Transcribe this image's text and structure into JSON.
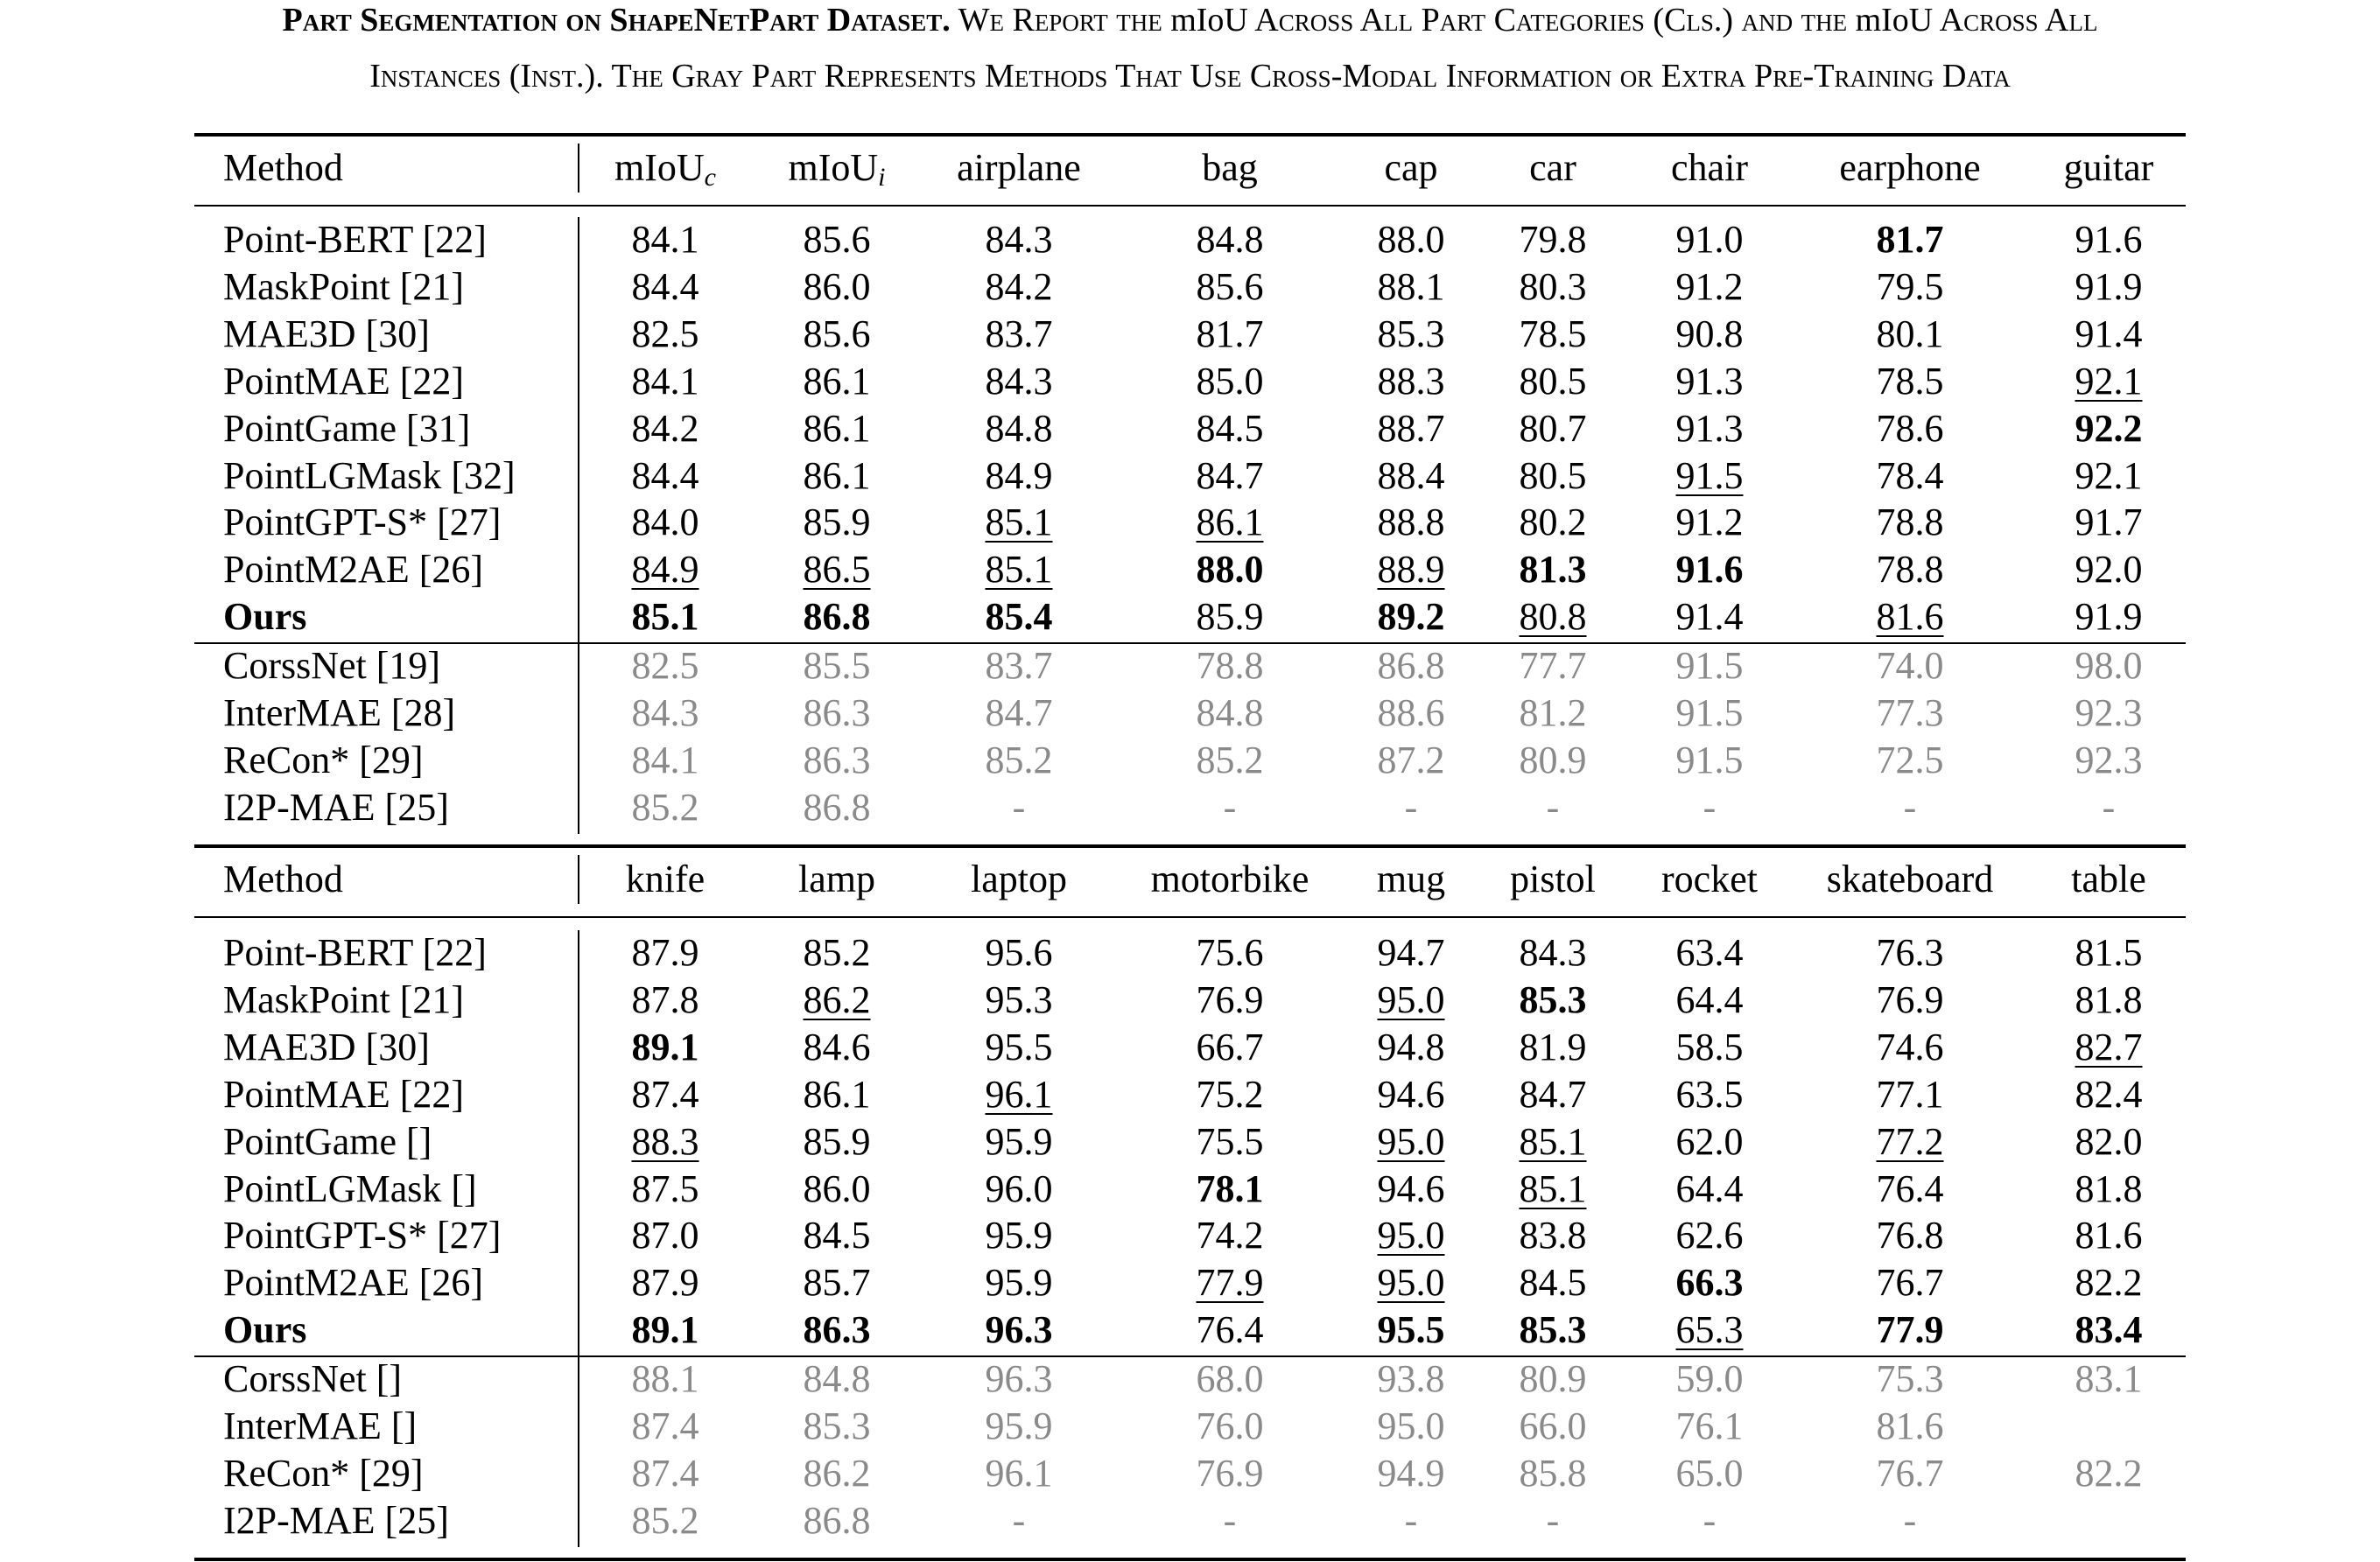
{
  "caption": {
    "title": "Part Segmentation on ShapeNetPart Dataset.",
    "seg_a": "We Report the ",
    "miou_a": "mIoU",
    "seg_b": " Across All Part Categories (Cls.) and the ",
    "miou_b": "mIoU",
    "seg_c": " Across All",
    "line2": "Instances (Inst.). The Gray Part Represents Methods That Use Cross-Modal Information or Extra Pre-Training Data"
  },
  "table1": {
    "headers": {
      "method": "Method",
      "miou_c_base": "mIoU",
      "miou_c_sub": "c",
      "miou_i_base": "mIoU",
      "miou_i_sub": "i",
      "cols": [
        "airplane",
        "bag",
        "cap",
        "car",
        "chair",
        "earphone",
        "guitar"
      ]
    },
    "rows": [
      {
        "method": "Point-BERT [22]",
        "values": [
          "84.1",
          "85.6",
          "84.3",
          "84.8",
          "88.0",
          "79.8",
          "91.0",
          "81.7",
          "91.6"
        ]
      },
      {
        "method": "MaskPoint [21]",
        "values": [
          "84.4",
          "86.0",
          "84.2",
          "85.6",
          "88.1",
          "80.3",
          "91.2",
          "79.5",
          "91.9"
        ]
      },
      {
        "method": "MAE3D [30]",
        "values": [
          "82.5",
          "85.6",
          "83.7",
          "81.7",
          "85.3",
          "78.5",
          "90.8",
          "80.1",
          "91.4"
        ]
      },
      {
        "method": "PointMAE [22]",
        "values": [
          "84.1",
          "86.1",
          "84.3",
          "85.0",
          "88.3",
          "80.5",
          "91.3",
          "78.5",
          "92.1"
        ]
      },
      {
        "method": "PointGame [31]",
        "values": [
          "84.2",
          "86.1",
          "84.8",
          "84.5",
          "88.7",
          "80.7",
          "91.3",
          "78.6",
          "92.2"
        ]
      },
      {
        "method": "PointLGMask [32]",
        "values": [
          "84.4",
          "86.1",
          "84.9",
          "84.7",
          "88.4",
          "80.5",
          "91.5",
          "78.4",
          "92.1"
        ]
      },
      {
        "method": "PointGPT-S* [27]",
        "values": [
          "84.0",
          "85.9",
          "85.1",
          "86.1",
          "88.8",
          "80.2",
          "91.2",
          "78.8",
          "91.7"
        ]
      },
      {
        "method": "PointM2AE [26]",
        "values": [
          "84.9",
          "86.5",
          "85.1",
          "88.0",
          "88.9",
          "81.3",
          "91.6",
          "78.8",
          "92.0"
        ]
      },
      {
        "method": "Ours",
        "values": [
          "85.1",
          "86.8",
          "85.4",
          "85.9",
          "89.2",
          "80.8",
          "91.4",
          "81.6",
          "91.9"
        ]
      }
    ],
    "gray_rows": [
      {
        "method": "CorssNet [19]",
        "values": [
          "82.5",
          "85.5",
          "83.7",
          "78.8",
          "86.8",
          "77.7",
          "91.5",
          "74.0",
          "98.0"
        ]
      },
      {
        "method": "InterMAE [28]",
        "values": [
          "84.3",
          "86.3",
          "84.7",
          "84.8",
          "88.6",
          "81.2",
          "91.5",
          "77.3",
          "92.3"
        ]
      },
      {
        "method": "ReCon* [29]",
        "values": [
          "84.1",
          "86.3",
          "85.2",
          "85.2",
          "87.2",
          "80.9",
          "91.5",
          "72.5",
          "92.3"
        ]
      },
      {
        "method": "I2P-MAE [25]",
        "values": [
          "85.2",
          "86.8",
          "-",
          "-",
          "-",
          "-",
          "-",
          "-",
          "-"
        ]
      }
    ]
  },
  "table2": {
    "headers": {
      "method": "Method",
      "cols": [
        "knife",
        "lamp",
        "laptop",
        "motorbike",
        "mug",
        "pistol",
        "rocket",
        "skateboard",
        "table"
      ]
    },
    "rows": [
      {
        "method": "Point-BERT [22]",
        "values": [
          "87.9",
          "85.2",
          "95.6",
          "75.6",
          "94.7",
          "84.3",
          "63.4",
          "76.3",
          "81.5"
        ]
      },
      {
        "method": "MaskPoint [21]",
        "values": [
          "87.8",
          "86.2",
          "95.3",
          "76.9",
          "95.0",
          "85.3",
          "64.4",
          "76.9",
          "81.8"
        ]
      },
      {
        "method": "MAE3D [30]",
        "values": [
          "89.1",
          "84.6",
          "95.5",
          "66.7",
          "94.8",
          "81.9",
          "58.5",
          "74.6",
          "82.7"
        ]
      },
      {
        "method": "PointMAE [22]",
        "values": [
          "87.4",
          "86.1",
          "96.1",
          "75.2",
          "94.6",
          "84.7",
          "63.5",
          "77.1",
          "82.4"
        ]
      },
      {
        "method": "PointGame []",
        "values": [
          "88.3",
          "85.9",
          "95.9",
          "75.5",
          "95.0",
          "85.1",
          "62.0",
          "77.2",
          "82.0"
        ]
      },
      {
        "method": "PointLGMask []",
        "values": [
          "87.5",
          "86.0",
          "96.0",
          "78.1",
          "94.6",
          "85.1",
          "64.4",
          "76.4",
          "81.8"
        ]
      },
      {
        "method": "PointGPT-S* [27]",
        "values": [
          "87.0",
          "84.5",
          "95.9",
          "74.2",
          "95.0",
          "83.8",
          "62.6",
          "76.8",
          "81.6"
        ]
      },
      {
        "method": "PointM2AE [26]",
        "values": [
          "87.9",
          "85.7",
          "95.9",
          "77.9",
          "95.0",
          "84.5",
          "66.3",
          "76.7",
          "82.2"
        ]
      },
      {
        "method": "Ours",
        "values": [
          "89.1",
          "86.3",
          "96.3",
          "76.4",
          "95.5",
          "85.3",
          "65.3",
          "77.9",
          "83.4"
        ]
      }
    ],
    "gray_rows": [
      {
        "method": "CorssNet []",
        "values": [
          "88.1",
          "84.8",
          "96.3",
          "68.0",
          "93.8",
          "80.9",
          "59.0",
          "75.3",
          "83.1"
        ]
      },
      {
        "method": "InterMAE []",
        "values": [
          "87.4",
          "85.3",
          "95.9",
          "76.0",
          "95.0",
          "66.0",
          "76.1",
          "81.6",
          ""
        ]
      },
      {
        "method": "ReCon* [29]",
        "values": [
          "87.4",
          "86.2",
          "96.1",
          "76.9",
          "94.9",
          "85.8",
          "65.0",
          "76.7",
          "82.2"
        ]
      },
      {
        "method": "I2P-MAE [25]",
        "values": [
          "85.2",
          "86.8",
          "-",
          "-",
          "-",
          "-",
          "-",
          "-",
          ""
        ]
      }
    ]
  }
}
